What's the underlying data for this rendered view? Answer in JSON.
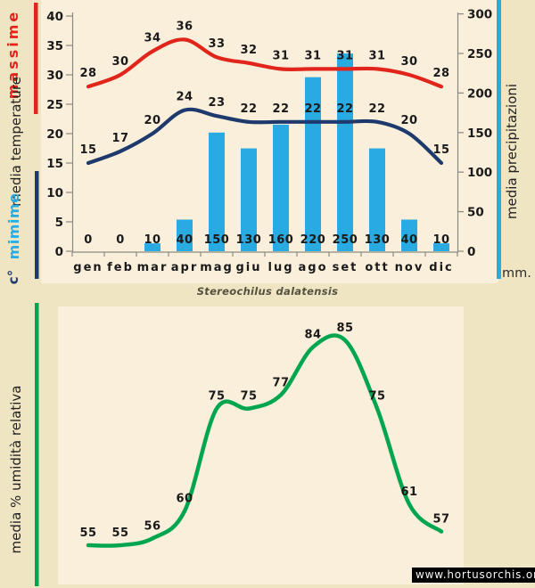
{
  "title": "Stereochilus dalatensis",
  "watermark": "www.hortusorchis.org",
  "colors": {
    "background": "#f0e5c3",
    "plot_background": "#f9efdb",
    "massime_red": "#e1251b",
    "mimime_navy": "#1e3a6d",
    "precipitation_blue": "#29abe2",
    "humidity_green": "#00a54f",
    "label_text": "#1a1a1a"
  },
  "chart_data": [
    {
      "type": "line+bar",
      "categories": [
        "gen",
        "feb",
        "mar",
        "apr",
        "mag",
        "giu",
        "lug",
        "ago",
        "set",
        "ott",
        "nov",
        "dic"
      ],
      "series": [
        {
          "name": "massime",
          "type": "line",
          "color": "#e1251b",
          "values": [
            28,
            30,
            34,
            36,
            33,
            32,
            31,
            31,
            31,
            31,
            30,
            28
          ]
        },
        {
          "name": "mimime",
          "type": "line",
          "color": "#1e3a6d",
          "values": [
            15,
            17,
            20,
            24,
            23,
            22,
            22,
            22,
            22,
            22,
            20,
            15
          ]
        },
        {
          "name": "precipitazioni",
          "type": "bar",
          "color": "#29abe2",
          "values": [
            0,
            0,
            10,
            40,
            150,
            130,
            160,
            220,
            250,
            130,
            40,
            10
          ]
        }
      ],
      "left_axis": {
        "label": "media temperature",
        "unit": "c°",
        "ticks": [
          0,
          5,
          10,
          15,
          20,
          25,
          30,
          35,
          40
        ],
        "range": [
          0,
          40
        ]
      },
      "right_axis": {
        "label": "media precipitazioni",
        "unit": "mm.",
        "ticks": [
          0,
          50,
          100,
          150,
          200,
          250,
          300
        ],
        "range": [
          0,
          300
        ]
      },
      "grid": false,
      "legend": "vertical color bars beside axes"
    },
    {
      "type": "line",
      "categories": [
        "gen",
        "feb",
        "mar",
        "apr",
        "mag",
        "giu",
        "lug",
        "ago",
        "set",
        "ott",
        "nov",
        "dic"
      ],
      "ylabel": "media % umidità relativa",
      "series": [
        {
          "name": "media % umidità relativa",
          "color": "#00a54f",
          "values": [
            55,
            55,
            56,
            60,
            75,
            75,
            77,
            84,
            85,
            75,
            61,
            57
          ]
        }
      ],
      "grid": false,
      "x_axis_labels_visible": false
    }
  ]
}
